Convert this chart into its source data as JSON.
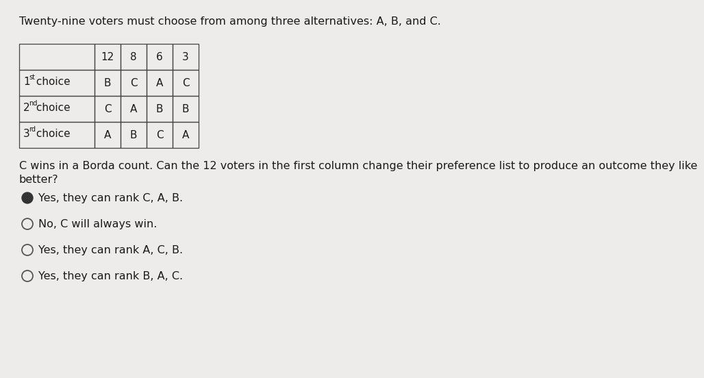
{
  "title": "Twenty-nine voters must choose from among three alternatives: A, B, and C.",
  "title_fontsize": 11.5,
  "bg_color": "#edecea",
  "table": {
    "col_headers": [
      "12",
      "8",
      "6",
      "3"
    ],
    "row_labels": [
      "1",
      "2",
      "3"
    ],
    "row_superscripts": [
      "st",
      "nd",
      "rd"
    ],
    "row_suffix": " choice",
    "data": [
      [
        "B",
        "C",
        "A",
        "C"
      ],
      [
        "C",
        "A",
        "B",
        "B"
      ],
      [
        "A",
        "B",
        "C",
        "A"
      ]
    ]
  },
  "question_text1": "C wins in a Borda count. Can the 12 voters in the first column change their preference list to produce an outcome they like",
  "question_text2": "better?",
  "question_fontsize": 11.5,
  "options": [
    {
      "text": "Yes, they can rank C, A, B.",
      "selected": true
    },
    {
      "text": "No, C will always win.",
      "selected": false
    },
    {
      "text": "Yes, they can rank A, C, B.",
      "selected": false
    },
    {
      "text": "Yes, they can rank B, A, C.",
      "selected": false
    }
  ],
  "option_fontsize": 11.5,
  "text_color": "#1a1a1a",
  "border_color": "#444444"
}
